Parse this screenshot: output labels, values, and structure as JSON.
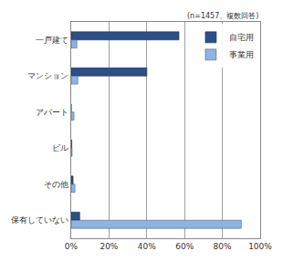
{
  "chart_data": {
    "type": "bar",
    "orientation": "horizontal",
    "annotations": [
      "(n=1457、複数回答)"
    ],
    "categories": [
      "一戸建て",
      "マンション",
      "アパート",
      "ビル",
      "その他",
      "保有していない"
    ],
    "series": [
      {
        "name": "自宅用",
        "color": "#2b4f86",
        "values": [
          57,
          40,
          0,
          0.3,
          1,
          4.5
        ]
      },
      {
        "name": "事業用",
        "color": "#8db4e2",
        "values": [
          3,
          3.5,
          1.5,
          0.5,
          2,
          90
        ]
      }
    ],
    "xlim": [
      0,
      100
    ],
    "xticks": [
      {
        "value": 0,
        "label": "0%"
      },
      {
        "value": 20,
        "label": "20%"
      },
      {
        "value": 40,
        "label": "40%"
      },
      {
        "value": 60,
        "label": "60%"
      },
      {
        "value": 80,
        "label": "80%"
      },
      {
        "value": 100,
        "label": "100%"
      }
    ],
    "grid": true,
    "legend": "top right"
  }
}
